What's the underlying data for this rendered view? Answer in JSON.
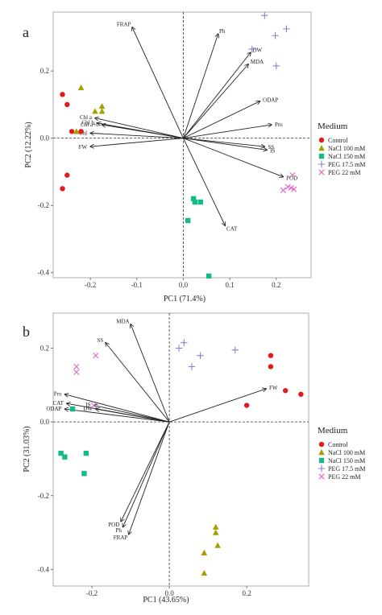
{
  "colors": {
    "Control": "#e31a1c",
    "NaCl 100 mM": "#a3a000",
    "NaCl 150 mM": "#16b98a",
    "PEG 17.5 mM": "#8c7fd6",
    "PEG 22 mM": "#e064c8"
  },
  "legend": {
    "title": "Medium",
    "items": [
      {
        "label": "Control",
        "shape": "circle"
      },
      {
        "label": "NaCl 100 mM",
        "shape": "triangle"
      },
      {
        "label": "NaCl 150 mM",
        "shape": "square"
      },
      {
        "label": "PEG 17.5 mM",
        "shape": "plus"
      },
      {
        "label": "PEG 22 mM",
        "shape": "cross"
      }
    ]
  },
  "chart_data": [
    {
      "panel": "a",
      "type": "scatter",
      "xlabel": "PC1 (71.4%)",
      "ylabel": "PC2 (12.22%)",
      "xlim": [
        -0.28,
        0.275
      ],
      "ylim": [
        -0.415,
        0.375
      ],
      "xticks": [
        -0.2,
        -0.1,
        0.0,
        0.1,
        0.2
      ],
      "xtick_labels": [
        "-0.2",
        "-0.1",
        "0.0",
        "0.1",
        "0.2"
      ],
      "yticks": [
        -0.4,
        -0.2,
        0.0,
        0.2
      ],
      "ytick_labels": [
        "-0.4",
        "-0.2",
        "0.0",
        "0.2"
      ],
      "legend_position": "right",
      "series": [
        {
          "name": "Control",
          "points": [
            [
              -0.26,
              0.13
            ],
            [
              -0.25,
              0.1
            ],
            [
              -0.24,
              0.02
            ],
            [
              -0.25,
              -0.11
            ],
            [
              -0.26,
              -0.15
            ],
            [
              -0.22,
              0.02
            ]
          ]
        },
        {
          "name": "NaCl 100 mM",
          "points": [
            [
              -0.22,
              0.15
            ],
            [
              -0.19,
              0.08
            ],
            [
              -0.175,
              0.095
            ],
            [
              -0.175,
              0.08
            ],
            [
              -0.23,
              0.02
            ]
          ]
        },
        {
          "name": "NaCl 150 mM",
          "points": [
            [
              0.022,
              -0.18
            ],
            [
              0.025,
              -0.19
            ],
            [
              0.037,
              -0.19
            ],
            [
              0.01,
              -0.245
            ],
            [
              0.055,
              -0.41
            ]
          ]
        },
        {
          "name": "PEG 17.5 mM",
          "points": [
            [
              0.175,
              0.365
            ],
            [
              0.222,
              0.325
            ],
            [
              0.198,
              0.305
            ],
            [
              0.148,
              0.265
            ],
            [
              0.2,
              0.215
            ]
          ]
        },
        {
          "name": "PEG 22 mM",
          "points": [
            [
              0.235,
              -0.11
            ],
            [
              0.225,
              -0.145
            ],
            [
              0.232,
              -0.148
            ],
            [
              0.238,
              -0.152
            ],
            [
              0.215,
              -0.155
            ]
          ]
        }
      ],
      "arrows": [
        {
          "label": "FRAP",
          "x": -0.11,
          "y": 0.33
        },
        {
          "label": "Ph",
          "x": 0.075,
          "y": 0.31
        },
        {
          "label": "DW",
          "x": 0.145,
          "y": 0.255
        },
        {
          "label": "MDA",
          "x": 0.14,
          "y": 0.22
        },
        {
          "label": "ODAP",
          "x": 0.165,
          "y": 0.11
        },
        {
          "label": "Pro",
          "x": 0.19,
          "y": 0.04
        },
        {
          "label": "SS",
          "x": 0.175,
          "y": -0.025
        },
        {
          "label": "IS",
          "x": 0.18,
          "y": -0.035
        },
        {
          "label": "POD",
          "x": 0.215,
          "y": -0.115
        },
        {
          "label": "CAT",
          "x": 0.09,
          "y": -0.26
        },
        {
          "label": "Chl a",
          "x": -0.19,
          "y": 0.06
        },
        {
          "label": "Chl b",
          "x": -0.185,
          "y": 0.045
        },
        {
          "label": "Chl a+b",
          "x": -0.175,
          "y": 0.04
        },
        {
          "label": "Chl",
          "x": -0.2,
          "y": 0.015
        },
        {
          "label": "FW",
          "x": -0.2,
          "y": -0.025
        }
      ]
    },
    {
      "panel": "b",
      "type": "scatter",
      "xlabel": "PC1 (43.65%)",
      "ylabel": "PC2 (31.03%)",
      "xlim": [
        -0.3,
        0.36
      ],
      "ylim": [
        -0.445,
        0.295
      ],
      "xticks": [
        -0.2,
        0.0,
        0.2
      ],
      "xtick_labels": [
        "-0.2",
        "0.0",
        "0.2"
      ],
      "yticks": [
        -0.4,
        -0.2,
        0.0,
        0.2
      ],
      "ytick_labels": [
        "-0.4",
        "-0.2",
        "0.0",
        "0.2"
      ],
      "legend_position": "right",
      "series": [
        {
          "name": "Control",
          "points": [
            [
              0.262,
              0.18
            ],
            [
              0.262,
              0.15
            ],
            [
              0.3,
              0.085
            ],
            [
              0.34,
              0.075
            ],
            [
              0.2,
              0.045
            ]
          ]
        },
        {
          "name": "NaCl 100 mM",
          "points": [
            [
              0.12,
              -0.285
            ],
            [
              0.12,
              -0.3
            ],
            [
              0.125,
              -0.335
            ],
            [
              0.09,
              -0.355
            ],
            [
              0.09,
              -0.41
            ]
          ]
        },
        {
          "name": "NaCl 150 mM",
          "points": [
            [
              -0.28,
              -0.085
            ],
            [
              -0.27,
              -0.095
            ],
            [
              -0.215,
              -0.085
            ],
            [
              -0.22,
              -0.14
            ],
            [
              -0.25,
              0.035
            ]
          ]
        },
        {
          "name": "PEG 17.5 mM",
          "points": [
            [
              0.025,
              0.2
            ],
            [
              0.038,
              0.215
            ],
            [
              0.08,
              0.18
            ],
            [
              0.058,
              0.15
            ],
            [
              0.17,
              0.195
            ]
          ]
        },
        {
          "name": "PEG 22 mM",
          "points": [
            [
              -0.24,
              0.15
            ],
            [
              -0.24,
              0.135
            ],
            [
              -0.19,
              0.18
            ],
            [
              -0.195,
              0.045
            ]
          ]
        }
      ],
      "arrows": [
        {
          "label": "MDA",
          "x": -0.1,
          "y": 0.265
        },
        {
          "label": "SS",
          "x": -0.165,
          "y": 0.215
        },
        {
          "label": "Pro",
          "x": -0.27,
          "y": 0.075
        },
        {
          "label": "CAT",
          "x": -0.265,
          "y": 0.05
        },
        {
          "label": "ODAP",
          "x": -0.27,
          "y": 0.035
        },
        {
          "label": "IS",
          "x": -0.195,
          "y": 0.045
        },
        {
          "label": "DW",
          "x": -0.19,
          "y": 0.035
        },
        {
          "label": "FW",
          "x": 0.25,
          "y": 0.09
        },
        {
          "label": "POD",
          "x": -0.125,
          "y": -0.27
        },
        {
          "label": "Ph",
          "x": -0.12,
          "y": -0.285
        },
        {
          "label": "FRAP",
          "x": -0.105,
          "y": -0.305
        }
      ]
    }
  ]
}
